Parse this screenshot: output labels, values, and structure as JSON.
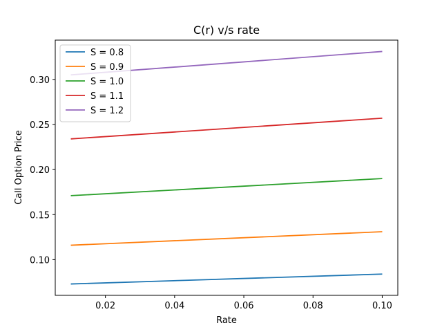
{
  "chart_data": {
    "type": "line",
    "title": "C(r) v/s rate",
    "xlabel": "Rate",
    "ylabel": "Call Option Price",
    "xlim": [
      0.0055,
      0.1045
    ],
    "ylim": [
      0.0604,
      0.3436
    ],
    "xticks": [
      0.02,
      0.04,
      0.06,
      0.08,
      0.1
    ],
    "xtick_labels": [
      "0.02",
      "0.04",
      "0.06",
      "0.08",
      "0.10"
    ],
    "yticks": [
      0.1,
      0.15,
      0.2,
      0.25,
      0.3
    ],
    "ytick_labels": [
      "0.10",
      "0.15",
      "0.20",
      "0.25",
      "0.30"
    ],
    "grid": false,
    "legend_position": "top-left",
    "x": [
      0.01,
      0.1
    ],
    "series": [
      {
        "name": "S = 0.8",
        "color": "#1f77b4",
        "values": [
          0.073,
          0.084
        ]
      },
      {
        "name": "S = 0.9",
        "color": "#ff7f0e",
        "values": [
          0.116,
          0.131
        ]
      },
      {
        "name": "S = 1.0",
        "color": "#2ca02c",
        "values": [
          0.171,
          0.19
        ]
      },
      {
        "name": "S = 1.1",
        "color": "#d62728",
        "values": [
          0.234,
          0.257
        ]
      },
      {
        "name": "S = 1.2",
        "color": "#9467bd",
        "values": [
          0.305,
          0.331
        ]
      }
    ]
  }
}
